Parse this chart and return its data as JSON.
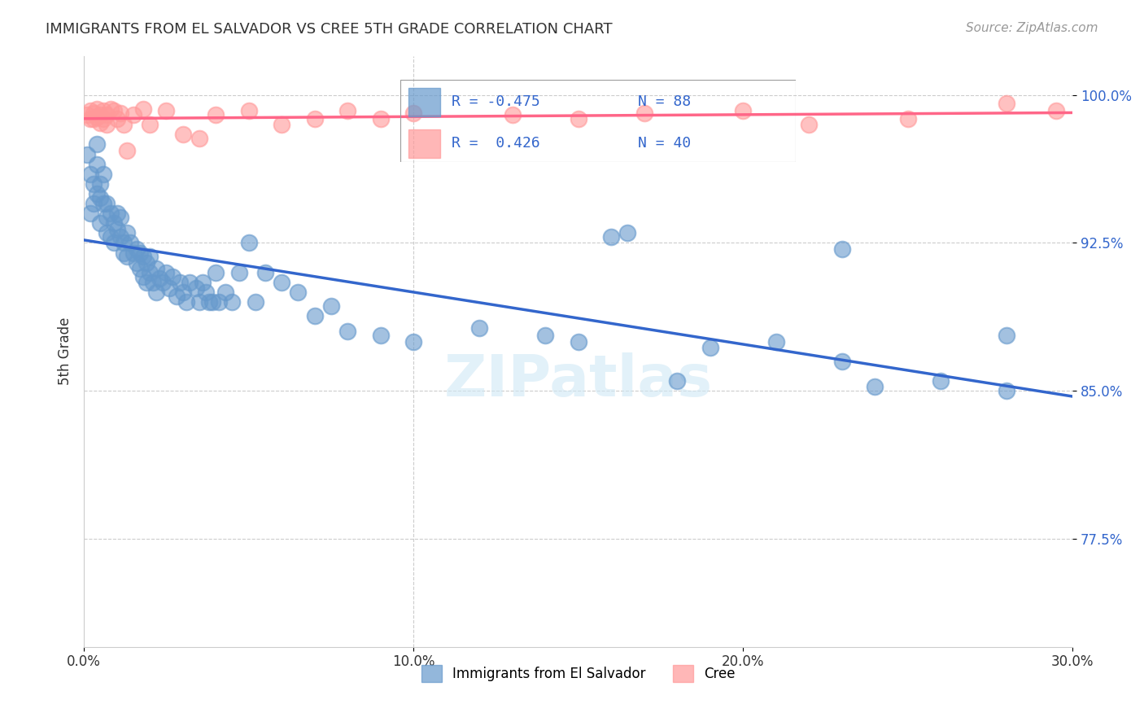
{
  "title": "IMMIGRANTS FROM EL SALVADOR VS CREE 5TH GRADE CORRELATION CHART",
  "source": "Source: ZipAtlas.com",
  "xlabel_bottom": "",
  "ylabel": "5th Grade",
  "xlim": [
    0.0,
    0.3
  ],
  "ylim": [
    0.72,
    1.02
  ],
  "x_ticks": [
    0.0,
    0.1,
    0.2,
    0.3
  ],
  "x_tick_labels": [
    "0.0%",
    "10.0%",
    "20.0%",
    "30.0%"
  ],
  "y_ticks": [
    0.775,
    0.85,
    0.925,
    1.0
  ],
  "y_tick_labels": [
    "77.5%",
    "85.0%",
    "92.5%",
    "100.0%"
  ],
  "legend_label1": "Immigrants from El Salvador",
  "legend_label2": "Cree",
  "R1": -0.475,
  "N1": 88,
  "R2": 0.426,
  "N2": 40,
  "color_blue": "#6699CC",
  "color_pink": "#FF9999",
  "line_color_blue": "#3366CC",
  "line_color_pink": "#FF6688",
  "watermark": "ZIPatlas",
  "blue_x": [
    0.001,
    0.002,
    0.002,
    0.003,
    0.003,
    0.004,
    0.004,
    0.004,
    0.005,
    0.005,
    0.005,
    0.006,
    0.006,
    0.007,
    0.007,
    0.007,
    0.008,
    0.008,
    0.009,
    0.009,
    0.01,
    0.01,
    0.011,
    0.011,
    0.012,
    0.012,
    0.013,
    0.013,
    0.014,
    0.015,
    0.016,
    0.016,
    0.017,
    0.017,
    0.018,
    0.018,
    0.019,
    0.019,
    0.02,
    0.02,
    0.021,
    0.022,
    0.022,
    0.023,
    0.024,
    0.025,
    0.026,
    0.027,
    0.028,
    0.029,
    0.03,
    0.031,
    0.032,
    0.034,
    0.035,
    0.036,
    0.037,
    0.038,
    0.039,
    0.04,
    0.041,
    0.043,
    0.045,
    0.047,
    0.05,
    0.052,
    0.055,
    0.06,
    0.065,
    0.07,
    0.075,
    0.08,
    0.09,
    0.1,
    0.12,
    0.14,
    0.15,
    0.16,
    0.19,
    0.21,
    0.23,
    0.24,
    0.26,
    0.28,
    0.165,
    0.23,
    0.18,
    0.28
  ],
  "blue_y": [
    0.97,
    0.96,
    0.94,
    0.955,
    0.945,
    0.95,
    0.965,
    0.975,
    0.955,
    0.948,
    0.935,
    0.96,
    0.945,
    0.945,
    0.938,
    0.93,
    0.94,
    0.928,
    0.935,
    0.925,
    0.932,
    0.94,
    0.928,
    0.938,
    0.925,
    0.92,
    0.93,
    0.918,
    0.925,
    0.92,
    0.922,
    0.915,
    0.92,
    0.912,
    0.918,
    0.908,
    0.915,
    0.905,
    0.91,
    0.918,
    0.905,
    0.912,
    0.9,
    0.907,
    0.905,
    0.91,
    0.902,
    0.908,
    0.898,
    0.905,
    0.9,
    0.895,
    0.905,
    0.902,
    0.895,
    0.905,
    0.9,
    0.895,
    0.895,
    0.91,
    0.895,
    0.9,
    0.895,
    0.91,
    0.925,
    0.895,
    0.91,
    0.905,
    0.9,
    0.888,
    0.893,
    0.88,
    0.878,
    0.875,
    0.882,
    0.878,
    0.875,
    0.928,
    0.872,
    0.875,
    0.865,
    0.852,
    0.855,
    0.85,
    0.93,
    0.922,
    0.855,
    0.878
  ],
  "pink_x": [
    0.001,
    0.002,
    0.002,
    0.003,
    0.003,
    0.004,
    0.004,
    0.005,
    0.005,
    0.006,
    0.006,
    0.007,
    0.007,
    0.008,
    0.009,
    0.01,
    0.011,
    0.012,
    0.013,
    0.015,
    0.018,
    0.02,
    0.025,
    0.03,
    0.035,
    0.04,
    0.05,
    0.06,
    0.07,
    0.08,
    0.09,
    0.1,
    0.13,
    0.15,
    0.17,
    0.2,
    0.22,
    0.25,
    0.28,
    0.295
  ],
  "pink_y": [
    0.99,
    0.988,
    0.992,
    0.988,
    0.991,
    0.989,
    0.993,
    0.99,
    0.986,
    0.992,
    0.988,
    0.99,
    0.985,
    0.993,
    0.992,
    0.988,
    0.991,
    0.985,
    0.972,
    0.99,
    0.993,
    0.985,
    0.992,
    0.98,
    0.978,
    0.99,
    0.992,
    0.985,
    0.988,
    0.992,
    0.988,
    0.991,
    0.99,
    0.988,
    0.991,
    0.992,
    0.985,
    0.988,
    0.996,
    0.992
  ]
}
